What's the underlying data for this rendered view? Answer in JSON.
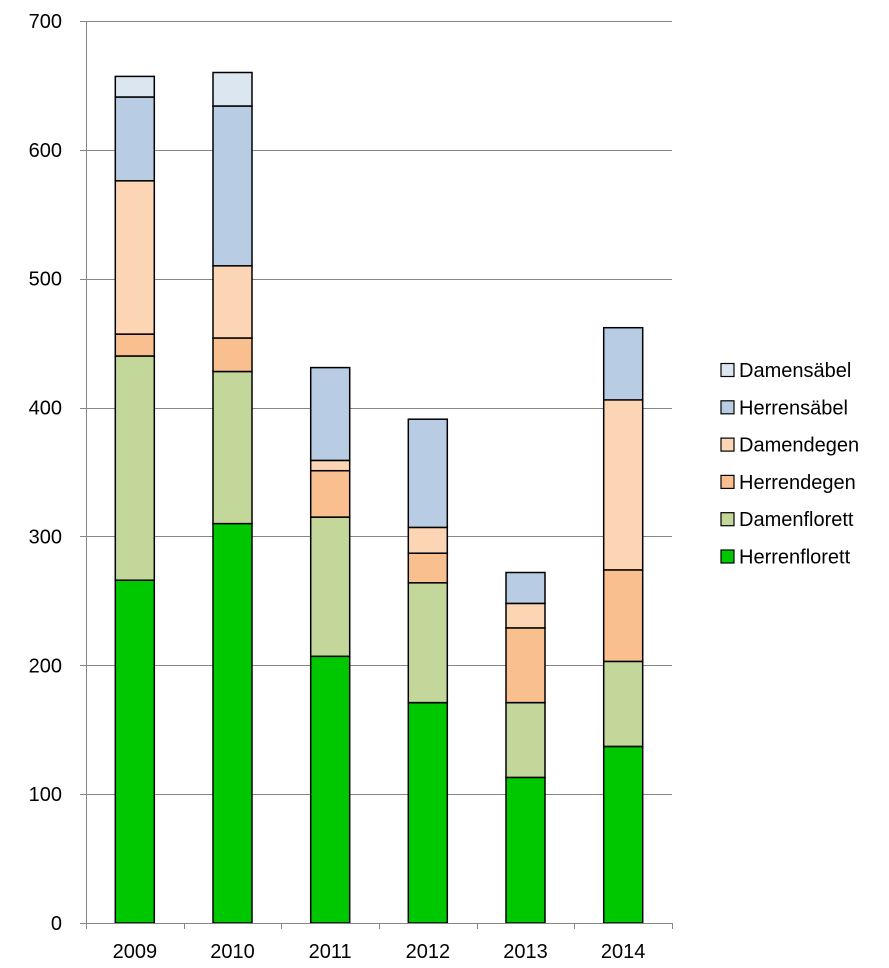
{
  "chart_data": {
    "type": "bar",
    "stacked": true,
    "categories": [
      "2009",
      "2010",
      "2011",
      "2012",
      "2013",
      "2014"
    ],
    "ylim": [
      0,
      700
    ],
    "yticks": [
      0,
      100,
      200,
      300,
      400,
      500,
      600,
      700
    ],
    "grid": true,
    "legend_position": "right",
    "series": [
      {
        "name": "Herrenflorett",
        "color": "#00c800",
        "values": [
          266,
          310,
          207,
          171,
          113,
          137
        ]
      },
      {
        "name": "Damenflorett",
        "color": "#c4d79b",
        "values": [
          174,
          118,
          108,
          93,
          58,
          66
        ]
      },
      {
        "name": "Herrendegen",
        "color": "#fabf8f",
        "values": [
          17,
          26,
          36,
          23,
          58,
          71
        ]
      },
      {
        "name": "Damendegen",
        "color": "#fcd5b4",
        "values": [
          119,
          56,
          8,
          20,
          19,
          132
        ]
      },
      {
        "name": "Herrensäbel",
        "color": "#b8cce4",
        "values": [
          65,
          124,
          72,
          84,
          24,
          56
        ]
      },
      {
        "name": "Damensäbel",
        "color": "#dce6f1",
        "values": [
          16,
          26,
          0,
          0,
          0,
          0
        ]
      }
    ]
  }
}
